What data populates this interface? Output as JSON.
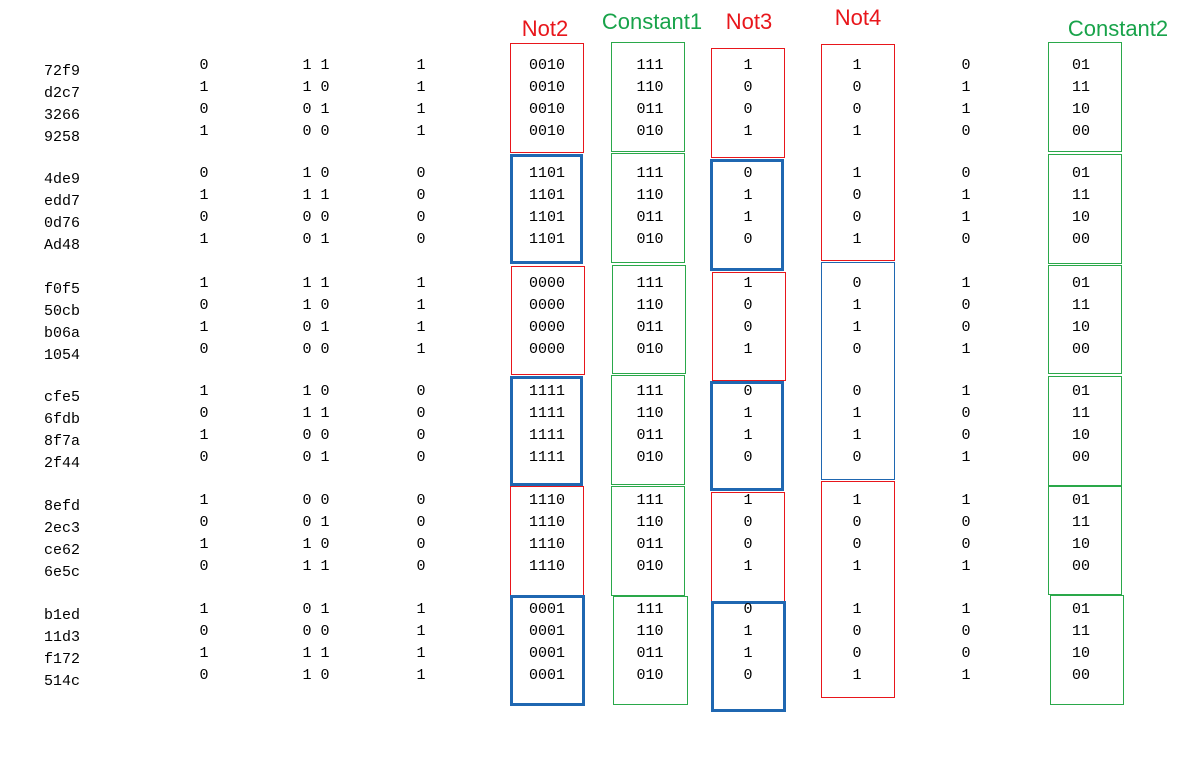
{
  "colors": {
    "red": "#e8161b",
    "green": "#18a34a",
    "blue": "#1f67b1",
    "green_box": "#2aa84a"
  },
  "headers": {
    "not2": "Not2",
    "constant1": "Constant1",
    "not3": "Not3",
    "not4": "Not4",
    "constant2": "Constant2"
  },
  "rows": [
    [
      "72f9",
      "0",
      "1 1",
      "1",
      "0010",
      "111",
      "1",
      "1",
      "0",
      "01"
    ],
    [
      "d2c7",
      "1",
      "1 0",
      "1",
      "0010",
      "110",
      "0",
      "0",
      "1",
      "11"
    ],
    [
      "3266",
      "0",
      "0 1",
      "1",
      "0010",
      "011",
      "0",
      "0",
      "1",
      "10"
    ],
    [
      "9258",
      "1",
      "0 0",
      "1",
      "0010",
      "010",
      "1",
      "1",
      "0",
      "00"
    ],
    [
      "4de9",
      "0",
      "1 0",
      "0",
      "1101",
      "111",
      "0",
      "1",
      "0",
      "01"
    ],
    [
      "edd7",
      "1",
      "1 1",
      "0",
      "1101",
      "110",
      "1",
      "0",
      "1",
      "11"
    ],
    [
      "0d76",
      "0",
      "0 0",
      "0",
      "1101",
      "011",
      "1",
      "0",
      "1",
      "10"
    ],
    [
      "Ad48",
      "1",
      "0 1",
      "0",
      "1101",
      "010",
      "0",
      "1",
      "0",
      "00"
    ],
    [
      "f0f5",
      "1",
      "1 1",
      "1",
      "0000",
      "111",
      "1",
      "0",
      "1",
      "01"
    ],
    [
      "50cb",
      "0",
      "1 0",
      "1",
      "0000",
      "110",
      "0",
      "1",
      "0",
      "11"
    ],
    [
      "b06a",
      "1",
      "0 1",
      "1",
      "0000",
      "011",
      "0",
      "1",
      "0",
      "10"
    ],
    [
      "1054",
      "0",
      "0 0",
      "1",
      "0000",
      "010",
      "1",
      "0",
      "1",
      "00"
    ],
    [
      "cfe5",
      "1",
      "1 0",
      "0",
      "1111",
      "111",
      "0",
      "0",
      "1",
      "01"
    ],
    [
      "6fdb",
      "0",
      "1 1",
      "0",
      "1111",
      "110",
      "1",
      "1",
      "0",
      "11"
    ],
    [
      "8f7a",
      "1",
      "0 0",
      "0",
      "1111",
      "011",
      "1",
      "1",
      "0",
      "10"
    ],
    [
      "2f44",
      "0",
      "0 1",
      "0",
      "1111",
      "010",
      "0",
      "0",
      "1",
      "00"
    ],
    [
      "8efd",
      "1",
      "0 0",
      "0",
      "1110",
      "111",
      "1",
      "1",
      "1",
      "01"
    ],
    [
      "2ec3",
      "0",
      "0 1",
      "0",
      "1110",
      "110",
      "0",
      "0",
      "0",
      "11"
    ],
    [
      "ce62",
      "1",
      "1 0",
      "0",
      "1110",
      "011",
      "0",
      "0",
      "0",
      "10"
    ],
    [
      "6e5c",
      "0",
      "1 1",
      "0",
      "1110",
      "010",
      "1",
      "1",
      "1",
      "00"
    ],
    [
      "b1ed",
      "1",
      "0 1",
      "1",
      "0001",
      "111",
      "0",
      "1",
      "1",
      "01"
    ],
    [
      "11d3",
      "0",
      "0 0",
      "1",
      "0001",
      "110",
      "1",
      "0",
      "0",
      "11"
    ],
    [
      "f172",
      "1",
      "1 1",
      "1",
      "0001",
      "011",
      "1",
      "0",
      "0",
      "10"
    ],
    [
      "514c",
      "0",
      "1 0",
      "1",
      "0001",
      "010",
      "0",
      "1",
      "1",
      "00"
    ]
  ]
}
